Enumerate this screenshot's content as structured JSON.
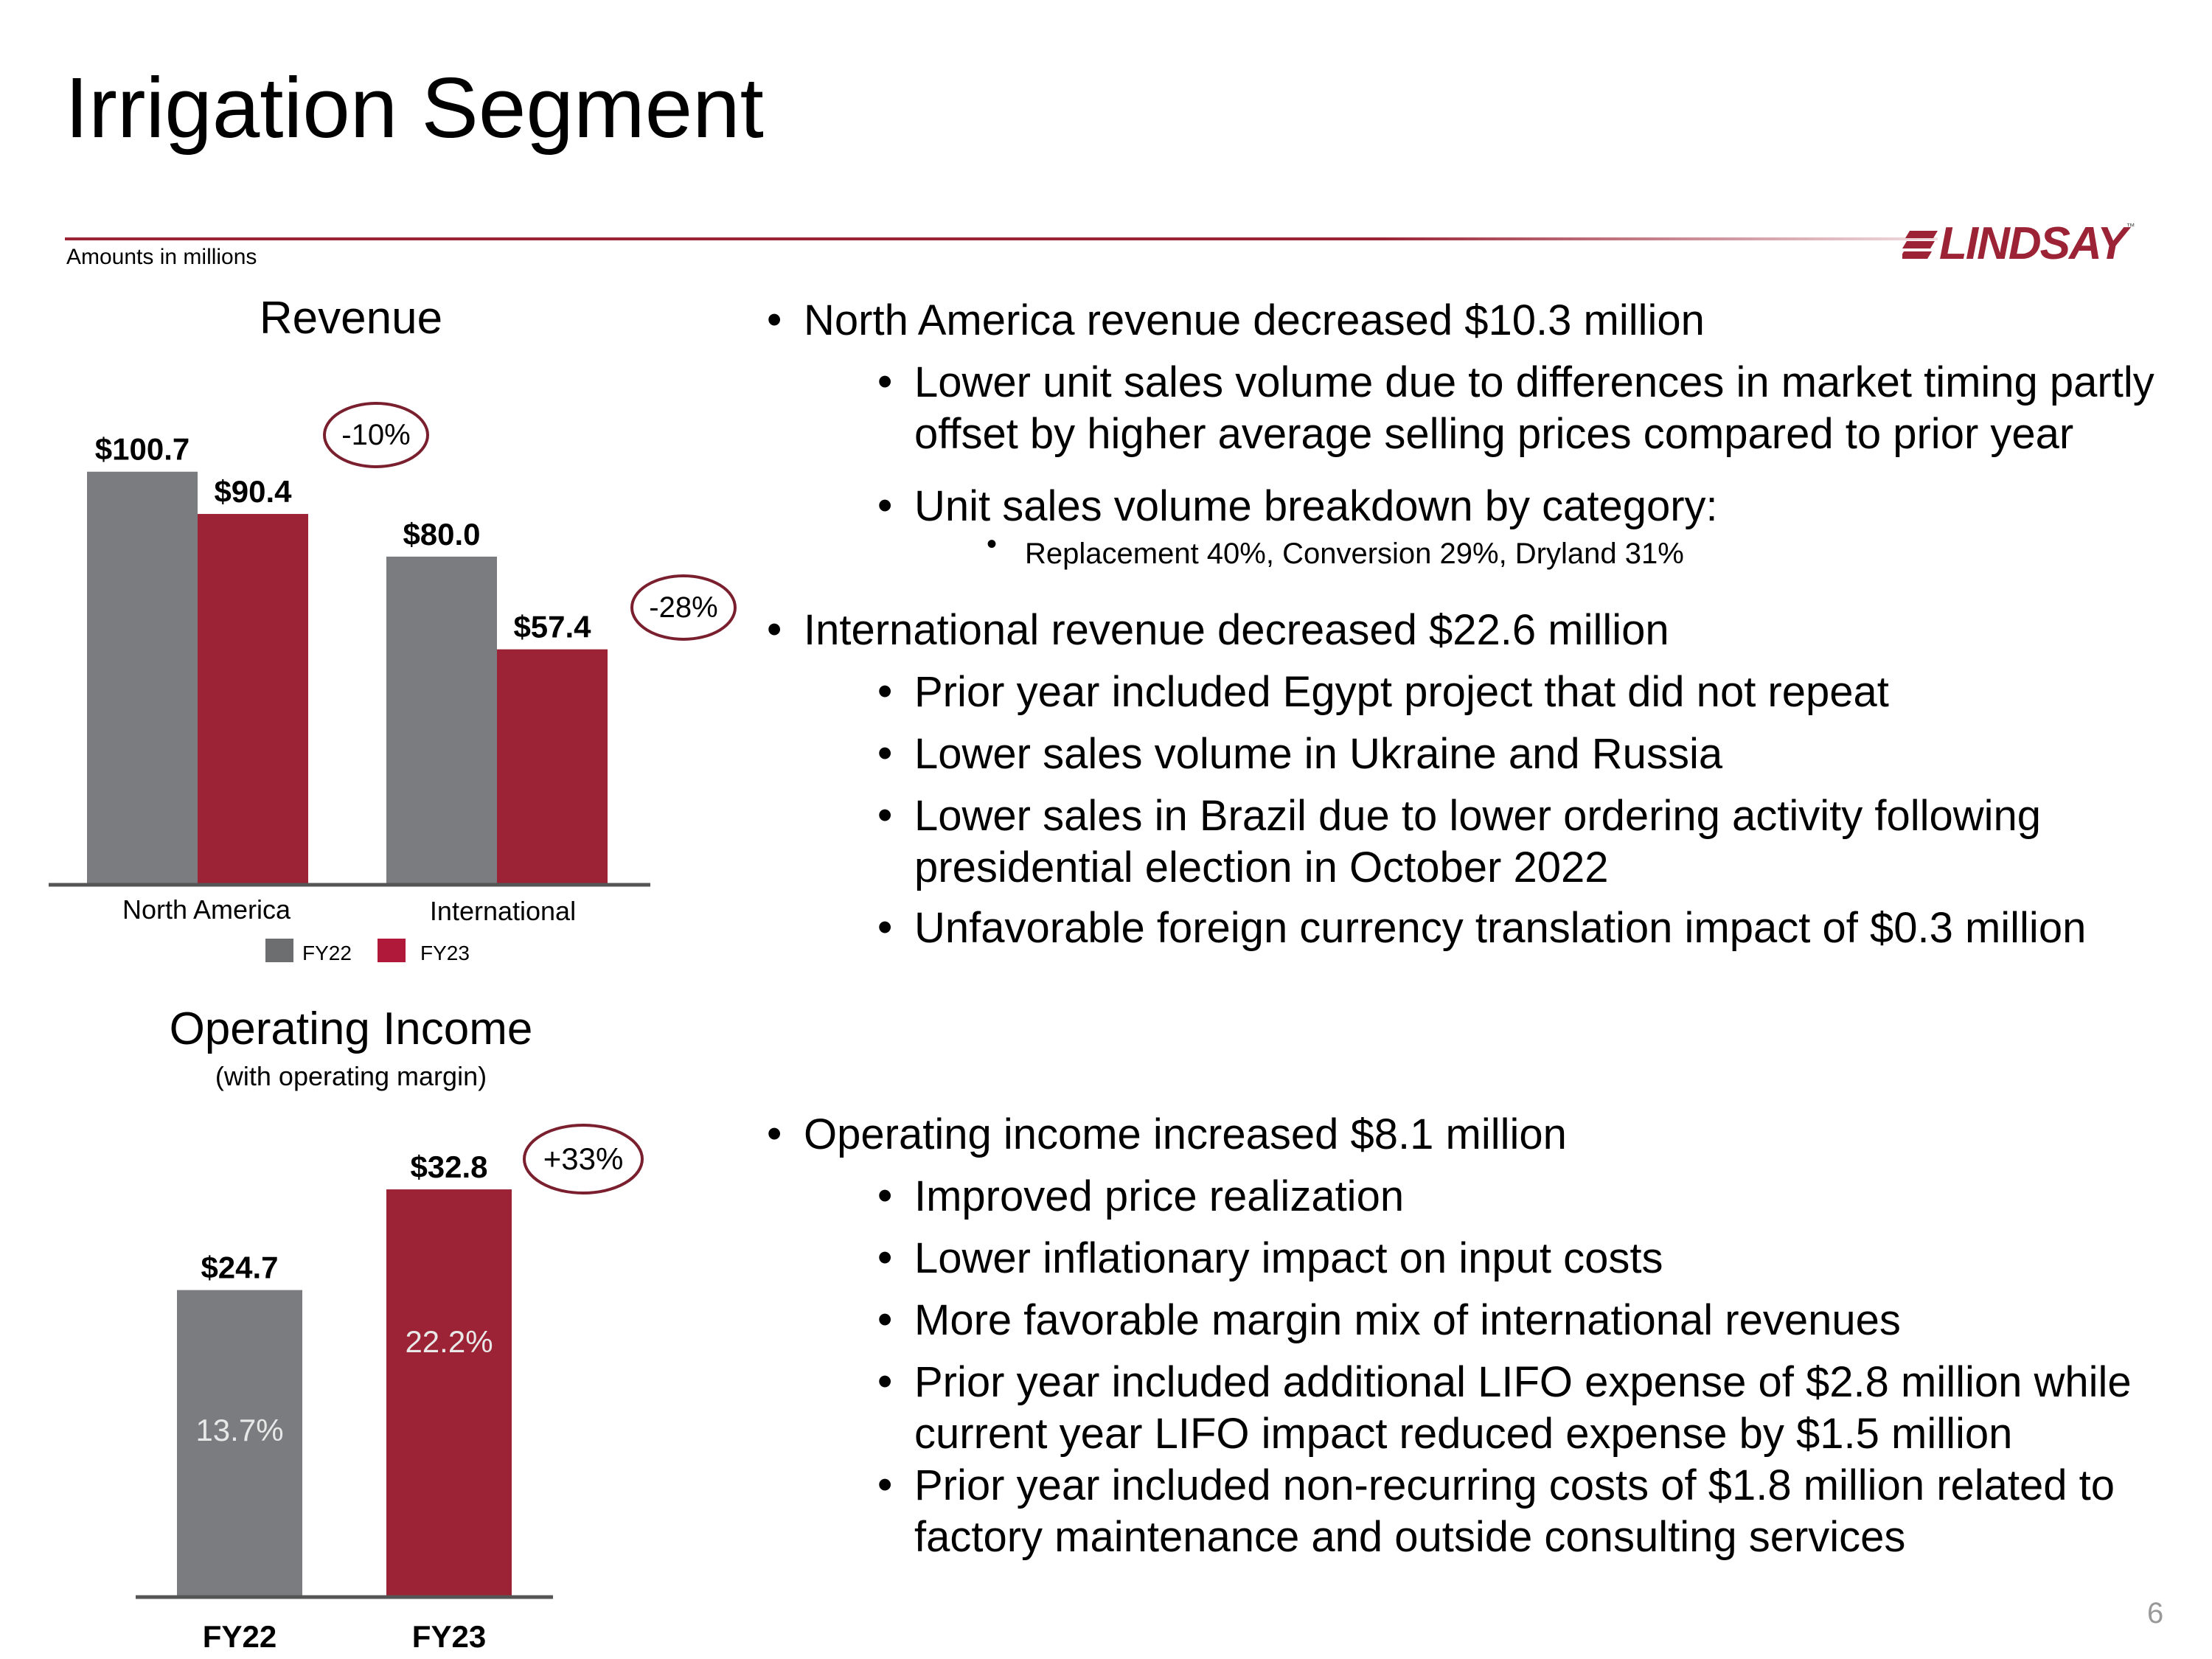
{
  "slide": {
    "title": "Irrigation Segment",
    "units_note": "Amounts in millions",
    "logo": "LINDSAY",
    "logo_tm": "™",
    "page_number": "6",
    "colors": {
      "fy22": "#7a7c7f",
      "fy23": "#9b2335",
      "accent": "#9b2335"
    }
  },
  "chart_data": [
    {
      "type": "bar",
      "title": "Revenue",
      "categories": [
        "North America",
        "International"
      ],
      "series": [
        {
          "name": "FY22",
          "values": [
            100.7,
            80.0
          ],
          "labels": [
            "$100.7",
            "$80.0"
          ]
        },
        {
          "name": "FY23",
          "values": [
            90.4,
            57.4
          ],
          "labels": [
            "$90.4",
            "$57.4"
          ]
        }
      ],
      "change_labels": [
        "-10%",
        "-28%"
      ],
      "legend": [
        "FY22",
        "FY23"
      ],
      "ylim": [
        0,
        110
      ]
    },
    {
      "type": "bar",
      "title": "Operating Income",
      "subtitle": "(with operating margin)",
      "categories": [
        "FY22",
        "FY23"
      ],
      "values": [
        24.7,
        32.8
      ],
      "labels": [
        "$24.7",
        "$32.8"
      ],
      "margins": [
        "13.7%",
        "22.2%"
      ],
      "change_label": "+33%",
      "ylim": [
        0,
        35
      ]
    }
  ],
  "bullets": {
    "revenue": [
      {
        "level": 1,
        "text": "North America revenue decreased $10.3 million"
      },
      {
        "level": 2,
        "text": "Lower unit sales volume due to differences in market timing partly",
        "cont": "offset by higher average selling prices compared to prior year"
      },
      {
        "level": 2,
        "text": "Unit sales volume breakdown by category:"
      },
      {
        "level": 3,
        "text": "Replacement 40%, Conversion 29%, Dryland 31%"
      },
      {
        "level": 1,
        "text": "International revenue decreased $22.6 million"
      },
      {
        "level": 2,
        "text": "Prior year included Egypt project that did not repeat"
      },
      {
        "level": 2,
        "text": "Lower sales volume in Ukraine and Russia"
      },
      {
        "level": 2,
        "text": "Lower sales in Brazil due to lower ordering activity following",
        "cont": "presidential election in October 2022"
      },
      {
        "level": 2,
        "text": "Unfavorable foreign currency translation impact of $0.3 million"
      }
    ],
    "income": [
      {
        "level": 1,
        "text": "Operating income increased $8.1 million"
      },
      {
        "level": 2,
        "text": "Improved price realization"
      },
      {
        "level": 2,
        "text": "Lower inflationary impact on input costs"
      },
      {
        "level": 2,
        "text": "More favorable margin mix of international revenues"
      },
      {
        "level": 2,
        "text": "Prior year included additional LIFO expense of $2.8 million while",
        "cont": "current year LIFO impact reduced expense by $1.5 million"
      },
      {
        "level": 2,
        "text": "Prior year included non-recurring costs of $1.8 million related to",
        "cont": "factory maintenance and outside consulting services"
      }
    ]
  }
}
